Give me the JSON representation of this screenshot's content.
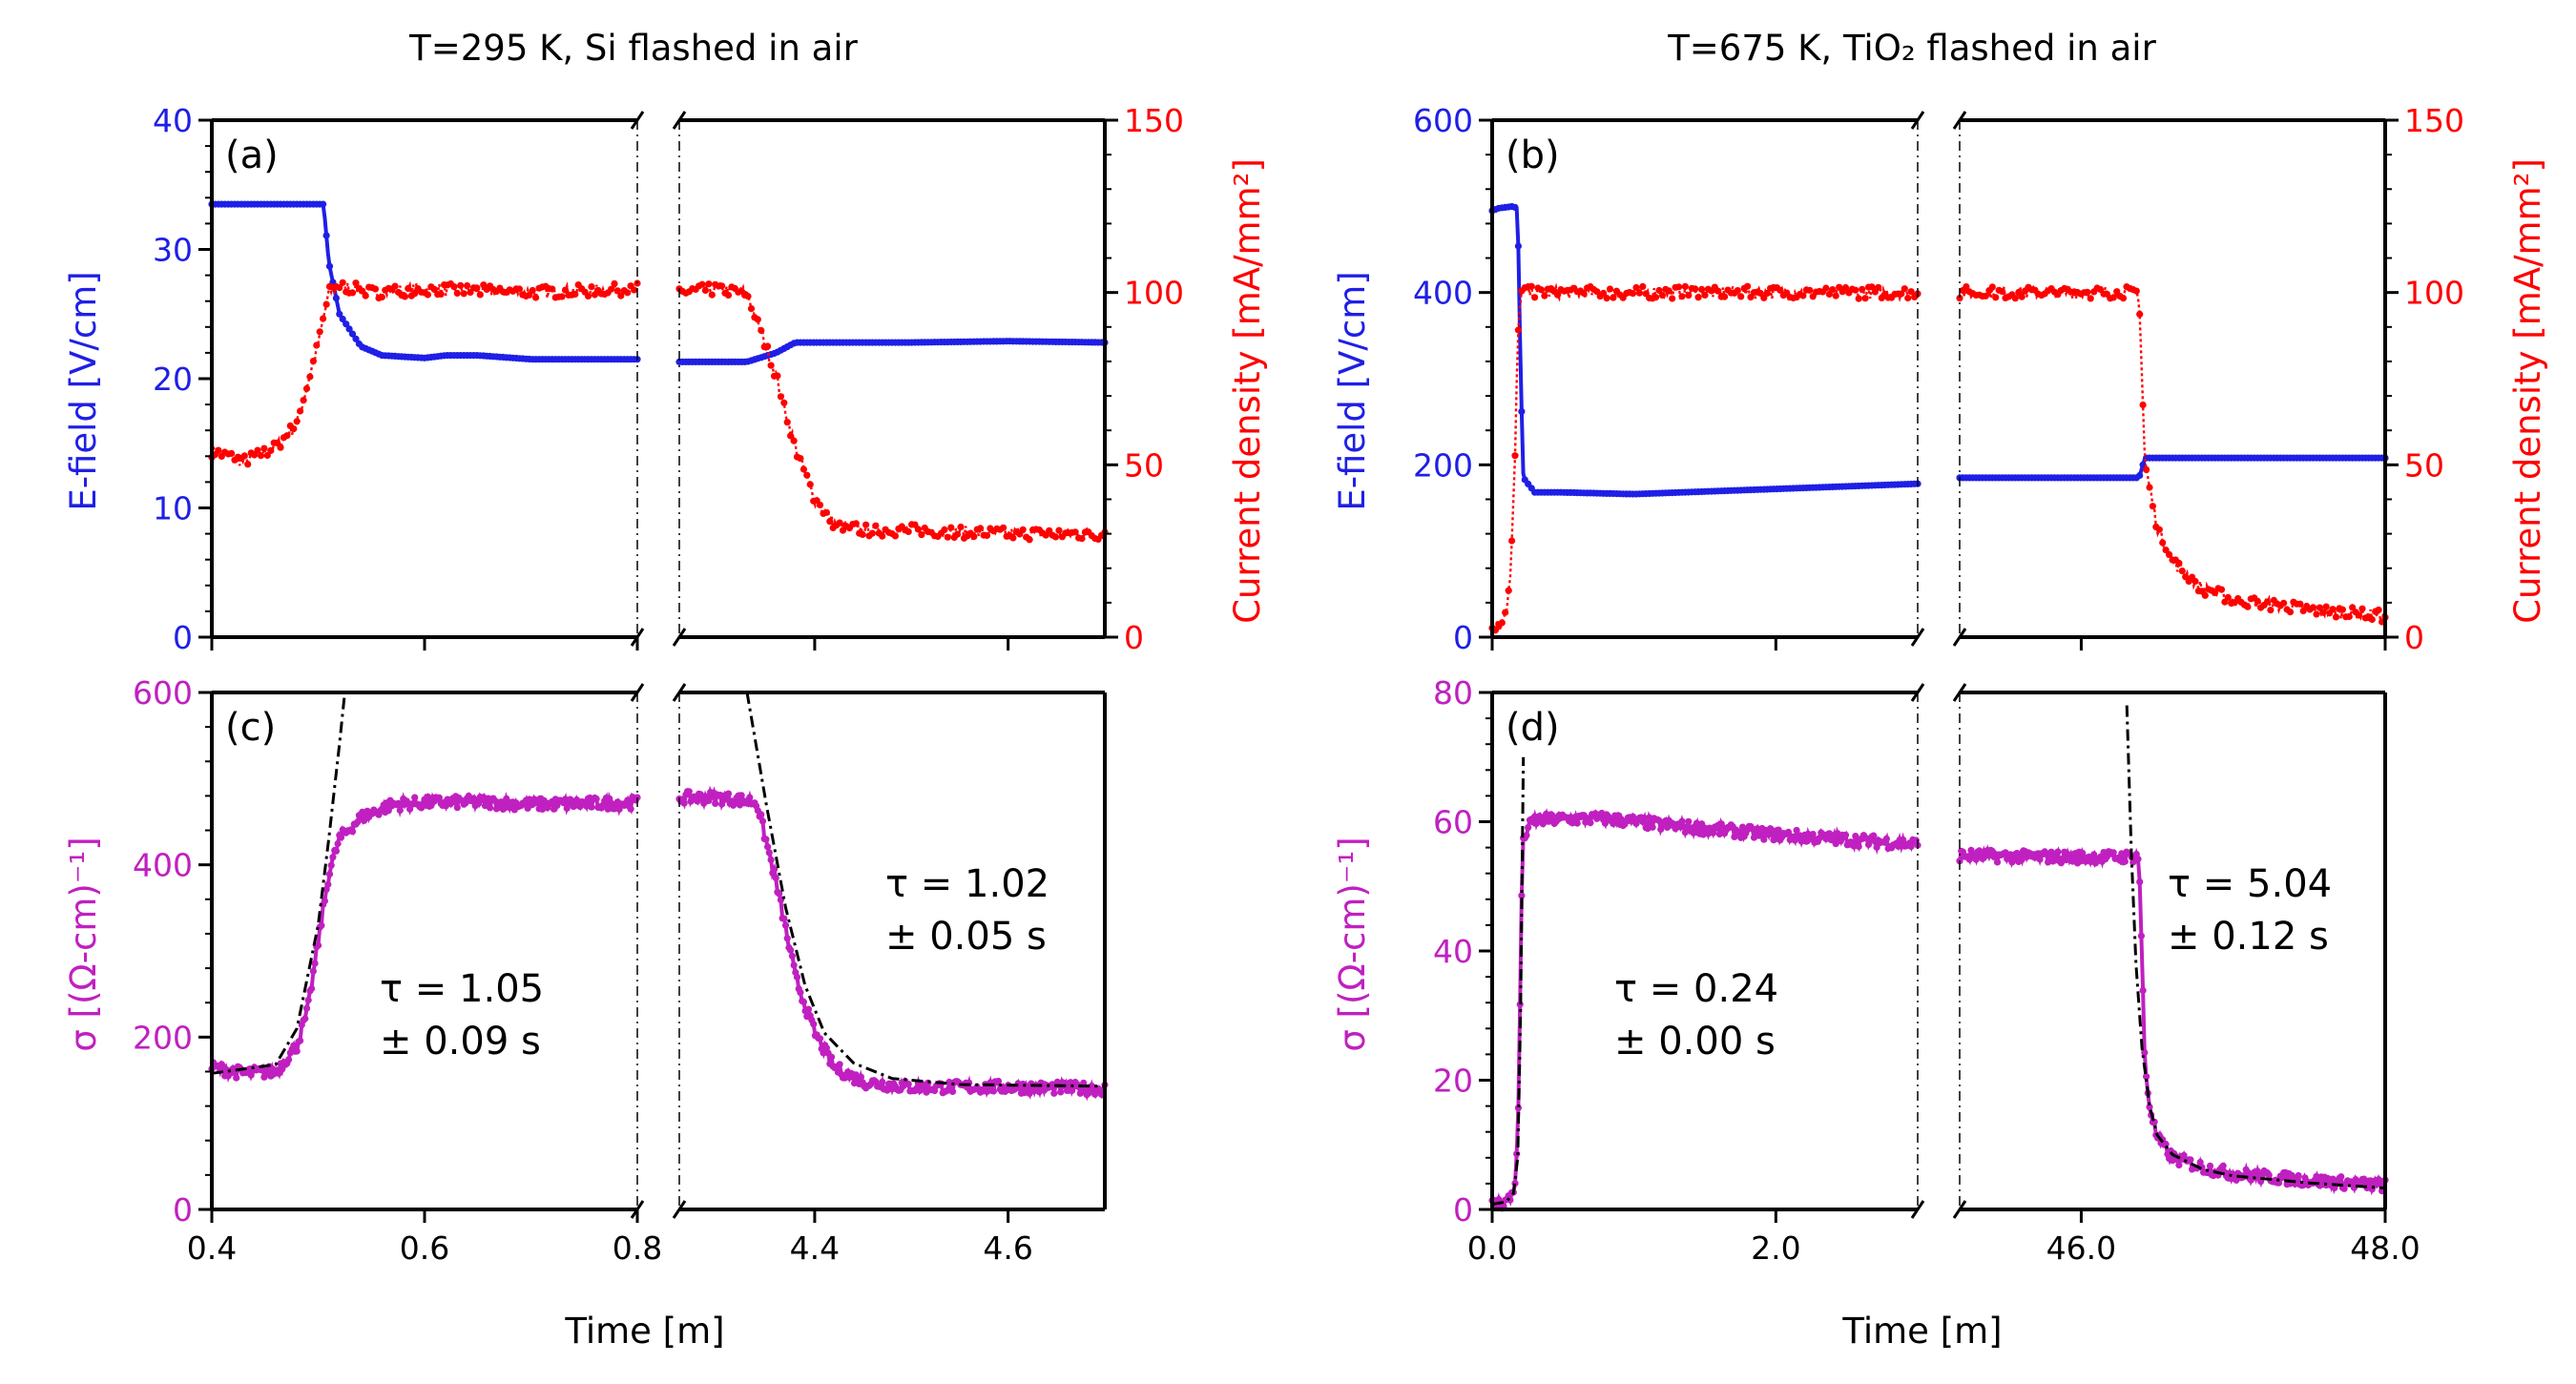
{
  "colors": {
    "efield": "#1f1fe6",
    "current": "#ff0000",
    "sigma": "#c020c0",
    "fit": "#000000"
  },
  "chart_data": [
    {
      "type": "line",
      "panel": "(a)",
      "title": "T=295 K, Si flashed in air",
      "ylabel_left": "E-field [V/cm]",
      "ylabel_right": "Current density [mA/mm²]",
      "ylim_left": [
        0,
        40
      ],
      "yticks_left": [
        "0",
        "10",
        "20",
        "30",
        "40"
      ],
      "ylim_right": [
        0,
        150
      ],
      "yticks_right": [
        "0",
        "50",
        "100",
        "150"
      ],
      "segments": [
        {
          "xlim": [
            0.4,
            0.8
          ],
          "xticks": [
            "0.4",
            "0.6",
            "0.8"
          ],
          "series": [
            {
              "axis": "left",
              "x": [
                0.4,
                0.45,
                0.49,
                0.505,
                0.51,
                0.52,
                0.54,
                0.56,
                0.6,
                0.62,
                0.65,
                0.7,
                0.8
              ],
              "y": [
                33.5,
                33.5,
                33.5,
                33.5,
                29,
                25,
                22.5,
                21.8,
                21.6,
                21.8,
                21.8,
                21.5,
                21.5
              ]
            },
            {
              "axis": "right",
              "x": [
                0.4,
                0.43,
                0.46,
                0.48,
                0.5,
                0.51,
                0.52,
                0.55,
                0.6,
                0.7,
                0.8
              ],
              "y": [
                54,
                51,
                55,
                62,
                85,
                100,
                102,
                100,
                101,
                100,
                101
              ]
            }
          ]
        },
        {
          "xlim": [
            4.26,
            4.7
          ],
          "xticks": [
            "4.4",
            "4.6"
          ],
          "series": [
            {
              "axis": "left",
              "x": [
                4.26,
                4.33,
                4.36,
                4.38,
                4.4,
                4.5,
                4.6,
                4.7
              ],
              "y": [
                21.3,
                21.3,
                22,
                22.8,
                22.8,
                22.8,
                22.9,
                22.8
              ]
            },
            {
              "axis": "right",
              "x": [
                4.26,
                4.3,
                4.33,
                4.36,
                4.38,
                4.4,
                4.42,
                4.45,
                4.5,
                4.6,
                4.7
              ],
              "y": [
                100,
                101,
                100,
                76,
                55,
                40,
                33,
                31,
                31,
                30,
                30
              ]
            }
          ]
        }
      ]
    },
    {
      "type": "line",
      "panel": "(b)",
      "title": "T=675 K, TiO₂ flashed in air",
      "ylabel_left": "E-field [V/cm]",
      "ylabel_right": "Current density [mA/mm²]",
      "ylim_left": [
        0,
        600
      ],
      "yticks_left": [
        "0",
        "200",
        "400",
        "600"
      ],
      "ylim_right": [
        0,
        150
      ],
      "yticks_right": [
        "0",
        "50",
        "100",
        "150"
      ],
      "segments": [
        {
          "xlim": [
            0.0,
            3.0
          ],
          "xticks": [
            "0.0",
            "2.0"
          ],
          "series": [
            {
              "axis": "left",
              "x": [
                0.0,
                0.05,
                0.15,
                0.18,
                0.2,
                0.22,
                0.3,
                0.5,
                1.0,
                2.0,
                3.0
              ],
              "y": [
                495,
                498,
                500,
                497,
                310,
                185,
                168,
                168,
                166,
                172,
                178
              ]
            },
            {
              "axis": "right",
              "x": [
                0.0,
                0.05,
                0.1,
                0.13,
                0.16,
                0.18,
                0.2,
                0.25,
                1.0,
                2.0,
                3.0
              ],
              "y": [
                3,
                4,
                8,
                18,
                50,
                85,
                100,
                100,
                100,
                100,
                100
              ]
            }
          ]
        },
        {
          "xlim": [
            45.2,
            48.0
          ],
          "xticks": [
            "46.0",
            "48.0"
          ],
          "series": [
            {
              "axis": "left",
              "x": [
                45.2,
                46.0,
                46.38,
                46.42,
                46.6,
                47.0,
                47.5,
                48.0
              ],
              "y": [
                185,
                185,
                185,
                208,
                208,
                208,
                208,
                208
              ]
            },
            {
              "axis": "right",
              "x": [
                45.2,
                46.0,
                46.38,
                46.42,
                46.5,
                46.6,
                46.8,
                47.0,
                47.5,
                48.0
              ],
              "y": [
                100,
                100,
                100,
                50,
                32,
                22,
                14,
                11,
                8,
                6
              ]
            }
          ]
        }
      ]
    },
    {
      "type": "scatter",
      "panel": "(c)",
      "xlabel": "Time [m]",
      "ylabel": "σ [(Ω-cm)⁻¹]",
      "ylim": [
        0,
        600
      ],
      "yticks": [
        "0",
        "200",
        "400",
        "600"
      ],
      "annotations": [
        {
          "line1": "τ = 1.05",
          "line2": "± 0.09 s"
        },
        {
          "line1": "τ = 1.02",
          "line2": "± 0.05 s"
        }
      ],
      "segments": [
        {
          "xlim": [
            0.4,
            0.8
          ],
          "xticks": [
            "0.4",
            "0.6",
            "0.8"
          ],
          "x": [
            0.4,
            0.43,
            0.46,
            0.48,
            0.49,
            0.5,
            0.51,
            0.52,
            0.54,
            0.57,
            0.6,
            0.65,
            0.7,
            0.8
          ],
          "y": [
            165,
            158,
            160,
            190,
            230,
            310,
            390,
            430,
            455,
            470,
            472,
            473,
            470,
            472
          ],
          "fit_x": [
            0.4,
            0.46,
            0.48,
            0.5,
            0.51,
            0.52,
            0.525
          ],
          "fit_y": [
            158,
            168,
            210,
            330,
            430,
            540,
            600
          ]
        },
        {
          "xlim": [
            4.26,
            4.7
          ],
          "xticks": [
            "4.4",
            "4.6"
          ],
          "x": [
            4.26,
            4.3,
            4.34,
            4.36,
            4.38,
            4.4,
            4.42,
            4.45,
            4.5,
            4.6,
            4.7
          ],
          "y": [
            478,
            478,
            473,
            380,
            270,
            205,
            165,
            148,
            142,
            142,
            140
          ],
          "fit_x": [
            4.33,
            4.35,
            4.37,
            4.39,
            4.41,
            4.44,
            4.48,
            4.55,
            4.7
          ],
          "fit_y": [
            600,
            470,
            350,
            260,
            205,
            170,
            152,
            145,
            143
          ]
        }
      ]
    },
    {
      "type": "scatter",
      "panel": "(d)",
      "xlabel": "Time [m]",
      "ylabel": "σ [(Ω-cm)⁻¹]",
      "ylim": [
        0,
        80
      ],
      "yticks": [
        "0",
        "20",
        "40",
        "60",
        "80"
      ],
      "annotations": [
        {
          "line1": "τ = 0.24",
          "line2": "± 0.00 s"
        },
        {
          "line1": "τ = 5.04",
          "line2": "± 0.12 s"
        }
      ],
      "segments": [
        {
          "xlim": [
            0.0,
            3.0
          ],
          "xticks": [
            "0.0",
            "2.0"
          ],
          "x": [
            0.0,
            0.08,
            0.13,
            0.16,
            0.18,
            0.19,
            0.2,
            0.21,
            0.22,
            0.25,
            0.3,
            0.5,
            0.8,
            1.2,
            2.0,
            3.0
          ],
          "y": [
            0.8,
            1.0,
            1.8,
            4,
            10,
            22,
            38,
            52,
            57,
            59,
            60.2,
            60.4,
            60.5,
            59.5,
            58,
            56.5
          ],
          "fit_x": [
            0.0,
            0.1,
            0.15,
            0.18,
            0.2,
            0.22
          ],
          "fit_y": [
            0.8,
            1.2,
            2.5,
            8,
            30,
            70
          ]
        },
        {
          "xlim": [
            45.2,
            48.0
          ],
          "xticks": [
            "46.0",
            "48.0"
          ],
          "x": [
            45.2,
            45.6,
            46.0,
            46.38,
            46.42,
            46.45,
            46.5,
            46.6,
            46.8,
            47.0,
            47.5,
            48.0
          ],
          "y": [
            54.8,
            54.6,
            54.5,
            54.6,
            22,
            16,
            11,
            8,
            6.5,
            5.5,
            4.5,
            3.7
          ],
          "fit_x": [
            46.3,
            46.33,
            46.36,
            46.4,
            46.45,
            46.5,
            46.6,
            46.8,
            47.0,
            47.5,
            48.0
          ],
          "fit_y": [
            78,
            55,
            38,
            25,
            16,
            11.5,
            8.5,
            6.2,
            5.2,
            4.1,
            3.3
          ]
        }
      ]
    }
  ]
}
